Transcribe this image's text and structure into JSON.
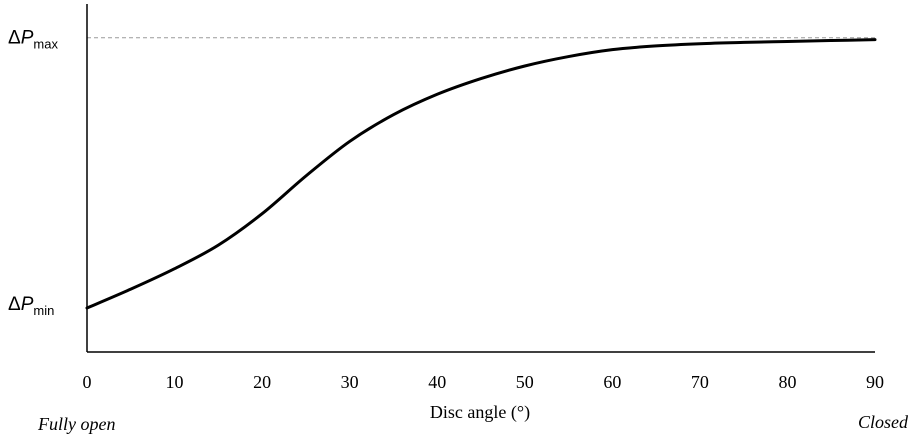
{
  "chart_data": {
    "type": "line",
    "title": "",
    "xlabel": "Disc angle (°)",
    "ylabel": "",
    "xlim": [
      0,
      90
    ],
    "ylim": [
      0,
      1.12
    ],
    "x_ticks": [
      0,
      10,
      20,
      30,
      40,
      50,
      60,
      70,
      80,
      90
    ],
    "x_end_labels": {
      "left": "Fully open",
      "right": "Closed"
    },
    "y_labels": {
      "max": {
        "symbol": "ΔP",
        "subscript": "max",
        "value": 1.0
      },
      "min": {
        "symbol": "ΔP",
        "subscript": "min",
        "value": 0.14
      }
    },
    "reference_line": {
      "y": 1.0,
      "style": "dashed",
      "color": "#9a9a9a"
    },
    "grid": false,
    "series": [
      {
        "color": "#000000",
        "x": [
          0,
          5,
          10,
          15,
          20,
          25,
          30,
          35,
          40,
          45,
          50,
          55,
          60,
          65,
          70,
          75,
          80,
          85,
          90
        ],
        "y": [
          0.14,
          0.2,
          0.265,
          0.34,
          0.44,
          0.56,
          0.67,
          0.755,
          0.82,
          0.87,
          0.91,
          0.94,
          0.962,
          0.974,
          0.981,
          0.985,
          0.988,
          0.991,
          0.994
        ]
      }
    ]
  }
}
